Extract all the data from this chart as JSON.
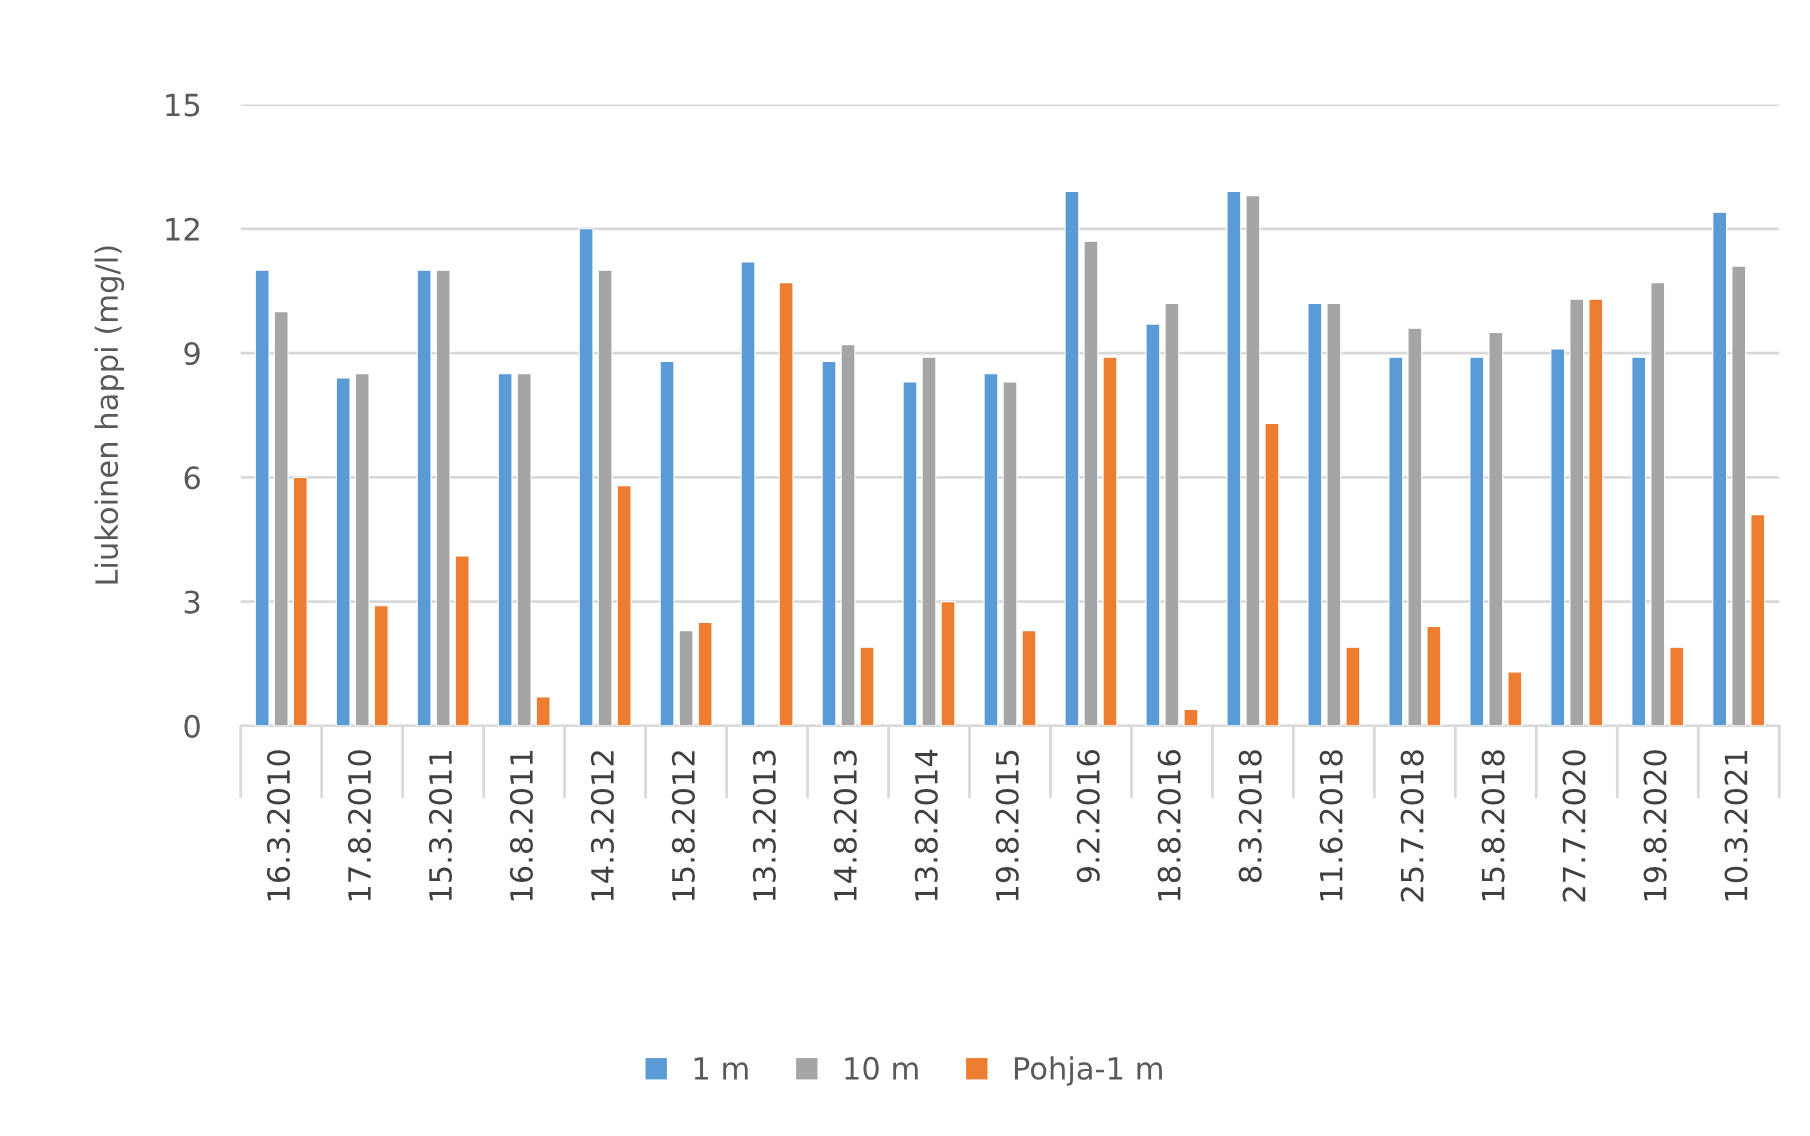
{
  "chart_data": {
    "type": "bar",
    "ylabel": "Liukoinen happi (mg/l)",
    "categories": [
      "16.3.2010",
      "17.8.2010",
      "15.3.2011",
      "16.8.2011",
      "14.3.2012",
      "15.8.2012",
      "13.3.2013",
      "14.8.2013",
      "13.8.2014",
      "19.8.2015",
      "9.2.2016",
      "18.8.2016",
      "8.3.2018",
      "11.6.2018",
      "25.7.2018",
      "15.8.2018",
      "27.7.2020",
      "19.8.2020",
      "10.3.2021"
    ],
    "series": [
      {
        "name": "1 m",
        "color": "#5b9bd5",
        "values": [
          11.0,
          8.4,
          11.0,
          8.5,
          12.0,
          8.8,
          11.2,
          8.8,
          8.3,
          8.5,
          12.9,
          9.7,
          12.9,
          10.2,
          8.9,
          8.9,
          9.1,
          8.9,
          12.4
        ]
      },
      {
        "name": "10 m",
        "color": "#a5a5a5",
        "values": [
          10.0,
          8.5,
          11.0,
          8.5,
          11.0,
          2.3,
          null,
          9.2,
          8.9,
          8.3,
          11.7,
          10.2,
          12.8,
          10.2,
          9.6,
          9.5,
          10.3,
          10.7,
          11.1
        ]
      },
      {
        "name": "Pohja-1 m",
        "color": "#ed7d31",
        "values": [
          6.0,
          2.9,
          4.1,
          0.7,
          5.8,
          2.5,
          10.7,
          1.9,
          3.0,
          2.3,
          8.9,
          0.4,
          7.3,
          1.9,
          2.4,
          1.3,
          10.3,
          1.9,
          5.1
        ]
      }
    ],
    "ylim": [
      0,
      15
    ],
    "yticks": [
      0,
      3,
      6,
      9,
      12,
      15
    ],
    "grid": "y",
    "legend": "bottom"
  }
}
